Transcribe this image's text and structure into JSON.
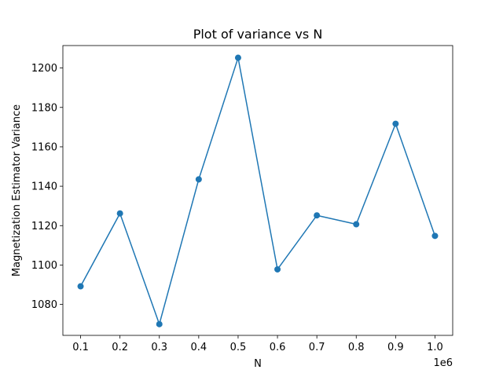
{
  "chart_data": {
    "type": "line",
    "title": "Plot of variance vs N",
    "xlabel": "N",
    "ylabel": "Magnetization Estimator Variance",
    "x_offset_label": "1e6",
    "x": [
      100000,
      200000,
      300000,
      400000,
      500000,
      600000,
      700000,
      800000,
      900000,
      1000000
    ],
    "series": [
      {
        "values": [
          1089.2,
          1126.2,
          1070.0,
          1143.5,
          1205.2,
          1097.8,
          1125.2,
          1120.7,
          1171.7,
          1114.8
        ],
        "color": "#1f77b4",
        "marker": "circle"
      }
    ],
    "xlim": [
      55000,
      1045000
    ],
    "ylim": [
      1064.3,
      1211.4
    ],
    "xticks": [
      100000,
      200000,
      300000,
      400000,
      500000,
      600000,
      700000,
      800000,
      900000,
      1000000
    ],
    "xtick_labels": [
      "0.1",
      "0.2",
      "0.3",
      "0.4",
      "0.5",
      "0.6",
      "0.7",
      "0.8",
      "0.9",
      "1.0"
    ],
    "yticks": [
      1080,
      1100,
      1120,
      1140,
      1160,
      1180,
      1200
    ],
    "ytick_labels": [
      "1080",
      "1100",
      "1120",
      "1140",
      "1160",
      "1180",
      "1200"
    ],
    "grid": false,
    "legend": "none"
  }
}
